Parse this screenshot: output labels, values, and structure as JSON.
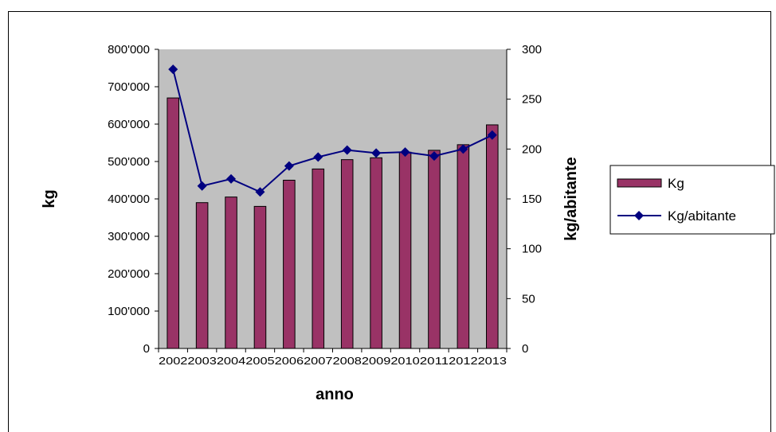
{
  "chart_data": {
    "type": "bar",
    "categories": [
      "2002",
      "2003",
      "2004",
      "2005",
      "2006",
      "2007",
      "2008",
      "2009",
      "2010",
      "2011",
      "2012",
      "2013"
    ],
    "series": [
      {
        "name": "Kg",
        "type": "bar",
        "axis": "left",
        "color": "#993366",
        "values": [
          670000,
          390000,
          405000,
          380000,
          450000,
          480000,
          505000,
          510000,
          525000,
          530000,
          545000,
          598000
        ]
      },
      {
        "name": "Kg/abitante",
        "type": "line",
        "axis": "right",
        "color": "#000080",
        "marker": "diamond",
        "values": [
          280,
          163,
          170,
          157,
          183,
          192,
          199,
          196,
          197,
          193,
          200,
          214
        ]
      }
    ],
    "xlabel": "anno",
    "ylabel": "kg",
    "y2label": "kg/abitante",
    "ylim": [
      0,
      800000
    ],
    "y2lim": [
      0,
      300
    ],
    "yticks": [
      "0",
      "100'000",
      "200'000",
      "300'000",
      "400'000",
      "500'000",
      "600'000",
      "700'000",
      "800'000"
    ],
    "y2ticks": [
      "0",
      "50",
      "100",
      "150",
      "200",
      "250",
      "300"
    ],
    "plot_background": "#c0c0c0",
    "grid": false,
    "legend_position": "right"
  }
}
